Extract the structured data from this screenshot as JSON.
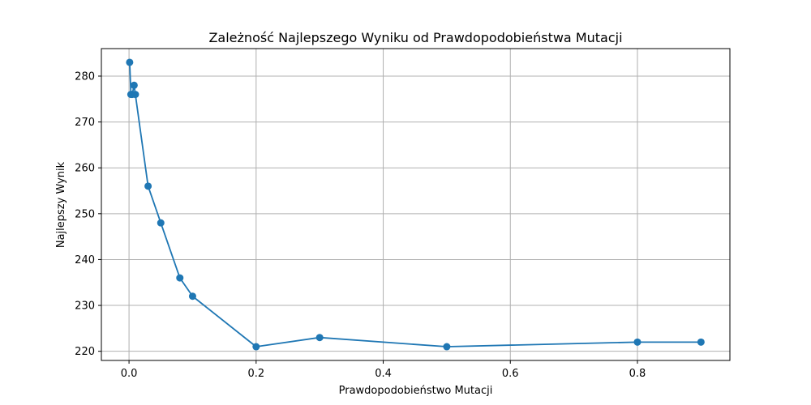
{
  "chart_data": {
    "type": "line",
    "title": "Zależność Najlepszego Wyniku od Prawdopodobieństwa Mutacji",
    "xlabel": "Prawdopodobieństwo Mutacji",
    "ylabel": "Najlepszy Wynik",
    "xlim": [
      -0.0435,
      0.9455
    ],
    "ylim": [
      218,
      286
    ],
    "x_ticks": [
      0.0,
      0.2,
      0.4,
      0.6,
      0.8
    ],
    "x_tick_labels": [
      "0.0",
      "0.2",
      "0.4",
      "0.6",
      "0.8"
    ],
    "y_ticks": [
      220,
      230,
      240,
      250,
      260,
      270,
      280
    ],
    "y_tick_labels": [
      "220",
      "230",
      "240",
      "250",
      "260",
      "270",
      "280"
    ],
    "grid": true,
    "series": [
      {
        "color": "#1f77b4",
        "marker": "circle",
        "x": [
          0.001,
          0.003,
          0.005,
          0.008,
          0.01,
          0.03,
          0.05,
          0.08,
          0.1,
          0.2,
          0.3,
          0.5,
          0.8,
          0.9
        ],
        "y": [
          283,
          276,
          276,
          278,
          276,
          256,
          248,
          236,
          232,
          221,
          223,
          221,
          222,
          222
        ]
      }
    ]
  }
}
